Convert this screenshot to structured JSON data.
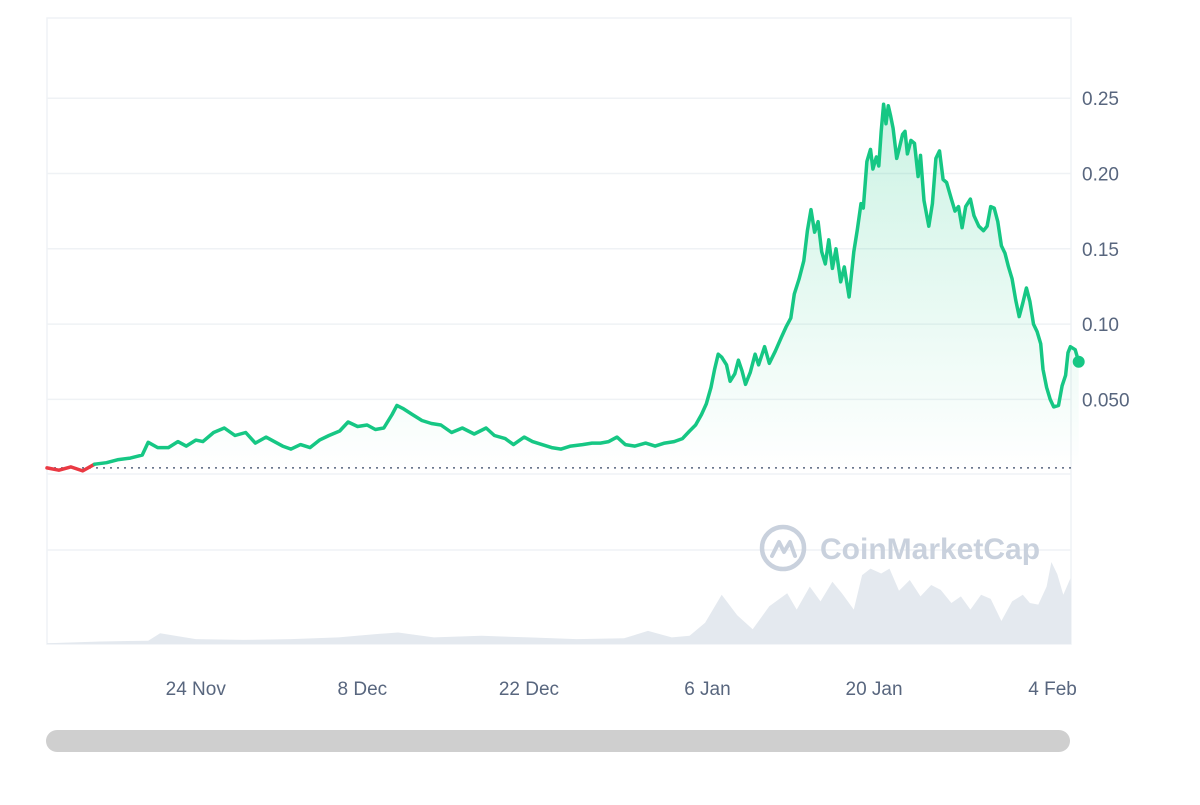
{
  "chart_data": {
    "type": "area",
    "title": "",
    "xlabel": "",
    "ylabel": "",
    "x_ticks": [
      "24 Nov",
      "8 Dec",
      "22 Dec",
      "6 Jan",
      "20 Jan",
      "4 Feb"
    ],
    "y_ticks": [
      "0.050",
      "0.10",
      "0.15",
      "0.20",
      "0.25"
    ],
    "y_tick_values": [
      0.05,
      0.1,
      0.15,
      0.2,
      0.25
    ],
    "ylim": [
      0,
      0.3
    ],
    "x_range_days": [
      -12.5,
      73.5
    ],
    "x_tick_days": [
      0,
      14,
      28,
      43,
      57,
      72
    ],
    "baseline_value": 0.0045,
    "grid": true,
    "legend": "none",
    "colors": {
      "line_up": "#16c784",
      "line_down": "#ea3943",
      "volume": "#e4e9ef",
      "grid": "#eff2f5",
      "baseline": "#58667e",
      "scrollbar": "#cfcfcf"
    },
    "series": [
      {
        "points": [
          [
            -12.5,
            0.0045
          ],
          [
            -11.5,
            0.003
          ],
          [
            -10.5,
            0.0052
          ],
          [
            -9.5,
            0.0025
          ],
          [
            -8.5,
            0.007
          ],
          [
            -7.5,
            0.008
          ],
          [
            -6.5,
            0.01
          ],
          [
            -5.5,
            0.011
          ],
          [
            -4.5,
            0.013
          ],
          [
            -4.0,
            0.0215
          ],
          [
            -3.2,
            0.018
          ],
          [
            -2.3,
            0.018
          ],
          [
            -1.5,
            0.022
          ],
          [
            -0.8,
            0.019
          ],
          [
            0,
            0.023
          ],
          [
            0.6,
            0.022
          ],
          [
            1.5,
            0.028
          ],
          [
            2.4,
            0.031
          ],
          [
            3.3,
            0.026
          ],
          [
            4.2,
            0.028
          ],
          [
            5.0,
            0.021
          ],
          [
            5.9,
            0.025
          ],
          [
            6.6,
            0.022
          ],
          [
            7.3,
            0.019
          ],
          [
            8.0,
            0.017
          ],
          [
            8.8,
            0.02
          ],
          [
            9.6,
            0.018
          ],
          [
            10.4,
            0.023
          ],
          [
            11.2,
            0.026
          ],
          [
            12.1,
            0.029
          ],
          [
            12.8,
            0.035
          ],
          [
            13.6,
            0.032
          ],
          [
            14.4,
            0.033
          ],
          [
            15.1,
            0.03
          ],
          [
            15.8,
            0.031
          ],
          [
            16.5,
            0.04
          ],
          [
            16.9,
            0.046
          ],
          [
            17.4,
            0.044
          ],
          [
            18.2,
            0.04
          ],
          [
            19.0,
            0.036
          ],
          [
            19.8,
            0.034
          ],
          [
            20.6,
            0.033
          ],
          [
            21.5,
            0.028
          ],
          [
            22.4,
            0.031
          ],
          [
            23.4,
            0.027
          ],
          [
            24.4,
            0.031
          ],
          [
            25.1,
            0.026
          ],
          [
            26.0,
            0.024
          ],
          [
            26.7,
            0.02
          ],
          [
            27.6,
            0.025
          ],
          [
            28.3,
            0.022
          ],
          [
            29.1,
            0.02
          ],
          [
            29.9,
            0.018
          ],
          [
            30.7,
            0.017
          ],
          [
            31.5,
            0.019
          ],
          [
            32.5,
            0.02
          ],
          [
            33.3,
            0.021
          ],
          [
            34.0,
            0.021
          ],
          [
            34.7,
            0.022
          ],
          [
            35.4,
            0.025
          ],
          [
            36.1,
            0.02
          ],
          [
            36.9,
            0.019
          ],
          [
            37.8,
            0.021
          ],
          [
            38.6,
            0.019
          ],
          [
            39.4,
            0.021
          ],
          [
            40.2,
            0.022
          ],
          [
            40.9,
            0.024
          ],
          [
            41.5,
            0.029
          ],
          [
            42.0,
            0.033
          ],
          [
            42.5,
            0.04
          ],
          [
            42.9,
            0.047
          ],
          [
            43.3,
            0.058
          ],
          [
            43.6,
            0.07
          ],
          [
            43.9,
            0.08
          ],
          [
            44.2,
            0.078
          ],
          [
            44.6,
            0.073
          ],
          [
            44.9,
            0.062
          ],
          [
            45.3,
            0.067
          ],
          [
            45.6,
            0.076
          ],
          [
            45.9,
            0.069
          ],
          [
            46.2,
            0.06
          ],
          [
            46.6,
            0.068
          ],
          [
            47.0,
            0.08
          ],
          [
            47.3,
            0.073
          ],
          [
            47.8,
            0.085
          ],
          [
            48.2,
            0.074
          ],
          [
            48.7,
            0.082
          ],
          [
            49.2,
            0.091
          ],
          [
            49.6,
            0.098
          ],
          [
            50.0,
            0.104
          ],
          [
            50.3,
            0.12
          ],
          [
            50.7,
            0.13
          ],
          [
            51.1,
            0.142
          ],
          [
            51.4,
            0.162
          ],
          [
            51.7,
            0.176
          ],
          [
            52.0,
            0.161
          ],
          [
            52.3,
            0.168
          ],
          [
            52.6,
            0.148
          ],
          [
            52.9,
            0.14
          ],
          [
            53.2,
            0.156
          ],
          [
            53.5,
            0.137
          ],
          [
            53.8,
            0.15
          ],
          [
            54.2,
            0.128
          ],
          [
            54.5,
            0.138
          ],
          [
            54.9,
            0.118
          ],
          [
            55.3,
            0.148
          ],
          [
            55.6,
            0.163
          ],
          [
            55.9,
            0.18
          ],
          [
            56.1,
            0.177
          ],
          [
            56.4,
            0.208
          ],
          [
            56.7,
            0.216
          ],
          [
            56.9,
            0.203
          ],
          [
            57.2,
            0.211
          ],
          [
            57.4,
            0.205
          ],
          [
            57.6,
            0.228
          ],
          [
            57.8,
            0.246
          ],
          [
            58.0,
            0.233
          ],
          [
            58.2,
            0.245
          ],
          [
            58.4,
            0.238
          ],
          [
            58.6,
            0.23
          ],
          [
            58.9,
            0.21
          ],
          [
            59.1,
            0.216
          ],
          [
            59.4,
            0.226
          ],
          [
            59.6,
            0.228
          ],
          [
            59.8,
            0.213
          ],
          [
            60.1,
            0.222
          ],
          [
            60.4,
            0.22
          ],
          [
            60.7,
            0.198
          ],
          [
            60.9,
            0.212
          ],
          [
            61.2,
            0.182
          ],
          [
            61.6,
            0.165
          ],
          [
            61.9,
            0.18
          ],
          [
            62.2,
            0.21
          ],
          [
            62.5,
            0.215
          ],
          [
            62.8,
            0.196
          ],
          [
            63.1,
            0.194
          ],
          [
            63.5,
            0.183
          ],
          [
            63.8,
            0.175
          ],
          [
            64.1,
            0.178
          ],
          [
            64.4,
            0.164
          ],
          [
            64.7,
            0.178
          ],
          [
            65.1,
            0.183
          ],
          [
            65.4,
            0.172
          ],
          [
            65.8,
            0.165
          ],
          [
            66.2,
            0.162
          ],
          [
            66.5,
            0.165
          ],
          [
            66.8,
            0.178
          ],
          [
            67.1,
            0.177
          ],
          [
            67.4,
            0.168
          ],
          [
            67.7,
            0.152
          ],
          [
            68.0,
            0.147
          ],
          [
            68.3,
            0.138
          ],
          [
            68.6,
            0.13
          ],
          [
            68.9,
            0.116
          ],
          [
            69.2,
            0.105
          ],
          [
            69.5,
            0.114
          ],
          [
            69.8,
            0.124
          ],
          [
            70.1,
            0.115
          ],
          [
            70.4,
            0.1
          ],
          [
            70.7,
            0.095
          ],
          [
            71.0,
            0.087
          ],
          [
            71.2,
            0.07
          ],
          [
            71.5,
            0.058
          ],
          [
            71.8,
            0.05
          ],
          [
            72.1,
            0.045
          ],
          [
            72.5,
            0.046
          ],
          [
            72.8,
            0.059
          ],
          [
            73.1,
            0.066
          ],
          [
            73.3,
            0.081
          ],
          [
            73.5,
            0.085
          ],
          [
            73.9,
            0.083
          ],
          [
            74.2,
            0.075
          ]
        ]
      }
    ],
    "volume_series": [
      [
        -12.5,
        0.01
      ],
      [
        -8,
        0.03
      ],
      [
        -4,
        0.04
      ],
      [
        -3,
        0.13
      ],
      [
        0,
        0.06
      ],
      [
        4,
        0.05
      ],
      [
        8,
        0.06
      ],
      [
        12,
        0.08
      ],
      [
        15,
        0.12
      ],
      [
        17,
        0.14
      ],
      [
        20,
        0.08
      ],
      [
        24,
        0.1
      ],
      [
        28,
        0.08
      ],
      [
        32,
        0.06
      ],
      [
        36,
        0.07
      ],
      [
        38,
        0.16
      ],
      [
        40,
        0.08
      ],
      [
        41.5,
        0.1
      ],
      [
        42.8,
        0.26
      ],
      [
        44.2,
        0.6
      ],
      [
        45.5,
        0.35
      ],
      [
        46.8,
        0.18
      ],
      [
        48.2,
        0.46
      ],
      [
        49.7,
        0.62
      ],
      [
        50.5,
        0.42
      ],
      [
        51.6,
        0.7
      ],
      [
        52.5,
        0.52
      ],
      [
        53.5,
        0.76
      ],
      [
        54.3,
        0.62
      ],
      [
        55.3,
        0.42
      ],
      [
        56.0,
        0.84
      ],
      [
        56.7,
        0.92
      ],
      [
        57.6,
        0.86
      ],
      [
        58.3,
        0.92
      ],
      [
        59.1,
        0.65
      ],
      [
        60.0,
        0.78
      ],
      [
        60.9,
        0.58
      ],
      [
        61.8,
        0.72
      ],
      [
        62.6,
        0.66
      ],
      [
        63.5,
        0.5
      ],
      [
        64.3,
        0.58
      ],
      [
        65.1,
        0.42
      ],
      [
        66.0,
        0.6
      ],
      [
        66.8,
        0.55
      ],
      [
        67.7,
        0.28
      ],
      [
        68.6,
        0.52
      ],
      [
        69.5,
        0.6
      ],
      [
        70.1,
        0.5
      ],
      [
        70.8,
        0.48
      ],
      [
        71.5,
        0.7
      ],
      [
        71.9,
        1.0
      ],
      [
        72.4,
        0.85
      ],
      [
        72.9,
        0.6
      ],
      [
        73.5,
        0.8
      ],
      [
        74.2,
        0.68
      ]
    ],
    "current_value": 0.075
  },
  "watermark": {
    "text": "CoinMarketCap"
  }
}
